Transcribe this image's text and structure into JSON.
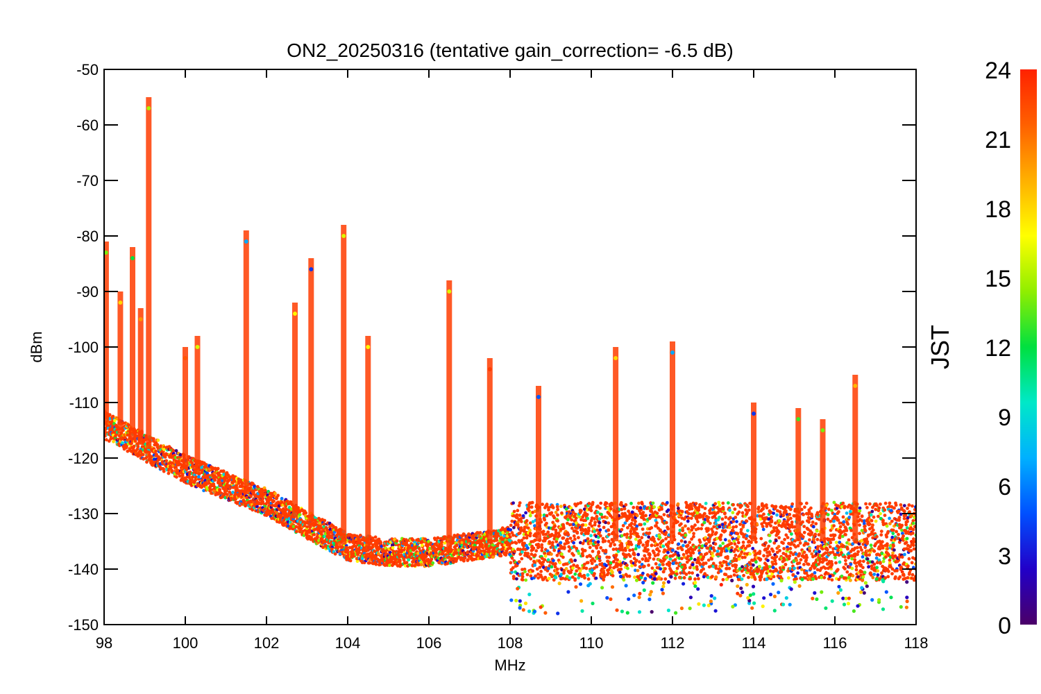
{
  "chart_data": {
    "type": "scatter",
    "title": "ON2_20250316 (tentative gain_correction= -6.5 dB)",
    "xlabel": "MHz",
    "ylabel": "dBm",
    "xlim": [
      98,
      118
    ],
    "ylim": [
      -150,
      -50
    ],
    "x_ticks": [
      98,
      100,
      102,
      104,
      106,
      108,
      110,
      112,
      114,
      116,
      118
    ],
    "y_ticks": [
      -50,
      -60,
      -70,
      -80,
      -90,
      -100,
      -110,
      -120,
      -130,
      -140,
      -150
    ],
    "grid": false,
    "colorbar": {
      "label": "JST",
      "range": [
        0,
        24
      ],
      "ticks": [
        0,
        3,
        6,
        9,
        12,
        15,
        18,
        21,
        24
      ],
      "colormap": [
        "#4b0068",
        "#2200c8",
        "#0050ff",
        "#00b0ff",
        "#00e8c8",
        "#00e040",
        "#90ee00",
        "#ffff00",
        "#ffb000",
        "#ff6000",
        "#ff2200"
      ]
    },
    "noise_floor": [
      {
        "x": 98.0,
        "y": -114
      },
      {
        "x": 99.0,
        "y": -118
      },
      {
        "x": 100.0,
        "y": -122
      },
      {
        "x": 101.0,
        "y": -125
      },
      {
        "x": 102.0,
        "y": -128
      },
      {
        "x": 103.0,
        "y": -132
      },
      {
        "x": 104.0,
        "y": -136
      },
      {
        "x": 105.0,
        "y": -137
      },
      {
        "x": 106.0,
        "y": -137
      },
      {
        "x": 107.0,
        "y": -136
      },
      {
        "x": 107.9,
        "y": -135
      },
      {
        "x": 108.0,
        "y": -135
      },
      {
        "x": 118.0,
        "y": -135
      }
    ],
    "signals": [
      {
        "x": 98.05,
        "ymax": -83,
        "hour": 14
      },
      {
        "x": 98.4,
        "ymax": -92,
        "hour": 18
      },
      {
        "x": 98.7,
        "ymax": -84,
        "hour": 12
      },
      {
        "x": 98.9,
        "ymax": -95,
        "hour": 20
      },
      {
        "x": 99.1,
        "ymax": -57,
        "hour": 15
      },
      {
        "x": 100.0,
        "ymax": -102,
        "hour": 22
      },
      {
        "x": 100.3,
        "ymax": -100,
        "hour": 16
      },
      {
        "x": 101.5,
        "ymax": -81,
        "hour": 7
      },
      {
        "x": 102.7,
        "ymax": -94,
        "hour": 17
      },
      {
        "x": 103.1,
        "ymax": -86,
        "hour": 4
      },
      {
        "x": 103.9,
        "ymax": -80,
        "hour": 16
      },
      {
        "x": 104.5,
        "ymax": -100,
        "hour": 17
      },
      {
        "x": 106.5,
        "ymax": -90,
        "hour": 16
      },
      {
        "x": 107.5,
        "ymax": -104,
        "hour": 23
      },
      {
        "x": 108.7,
        "ymax": -109,
        "hour": 5
      },
      {
        "x": 110.6,
        "ymax": -102,
        "hour": 18
      },
      {
        "x": 112.0,
        "ymax": -101,
        "hour": 7
      },
      {
        "x": 114.0,
        "ymax": -112,
        "hour": 4
      },
      {
        "x": 115.1,
        "ymax": -113,
        "hour": 13
      },
      {
        "x": 115.7,
        "ymax": -115,
        "hour": 14
      },
      {
        "x": 116.5,
        "ymax": -107,
        "hour": 19
      }
    ]
  }
}
